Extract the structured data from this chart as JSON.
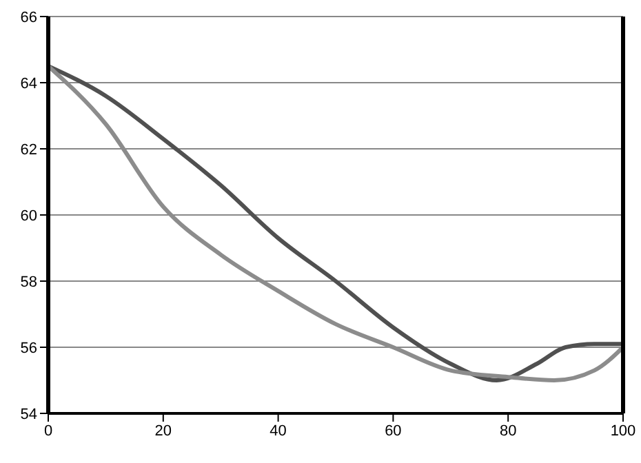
{
  "chart_data": {
    "type": "line",
    "x": [
      0,
      10,
      20,
      30,
      40,
      50,
      60,
      70,
      78,
      85,
      90,
      95,
      100
    ],
    "series": [
      {
        "color": "#505050",
        "values": [
          64.5,
          63.6,
          62.3,
          60.9,
          59.3,
          58.0,
          56.6,
          55.5,
          55.0,
          55.5,
          56.0,
          56.1,
          56.1
        ]
      },
      {
        "color": "#8c8c8c",
        "x": [
          0,
          10,
          20,
          30,
          40,
          50,
          60,
          70,
          80,
          88,
          95,
          100
        ],
        "values": [
          64.5,
          62.75,
          60.25,
          58.8,
          57.7,
          56.7,
          56.0,
          55.3,
          55.1,
          55.0,
          55.3,
          56.0
        ]
      }
    ],
    "xlim": [
      0,
      100
    ],
    "xticks": [
      0,
      20,
      40,
      60,
      80,
      100
    ],
    "ylim": [
      54,
      66
    ],
    "yticks": [
      54,
      56,
      58,
      60,
      62,
      64,
      66
    ],
    "grid": "y",
    "marker": "none",
    "line_style": "solid"
  }
}
